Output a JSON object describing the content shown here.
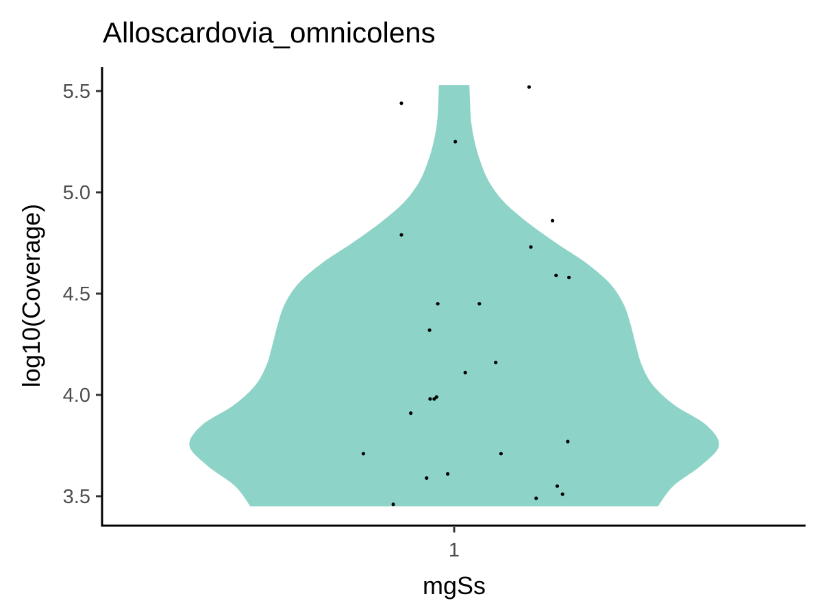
{
  "chart_data": {
    "type": "violin",
    "title": "Alloscardovia_omnicolens",
    "xlabel": "mgSs",
    "ylabel": "log10(Coverage)",
    "categories": [
      "1"
    ],
    "x_range": [
      0.4,
      1.6
    ],
    "ylim": [
      3.42,
      5.55
    ],
    "yticks": [
      3.5,
      4.0,
      4.5,
      5.0,
      5.5
    ],
    "ytick_labels": [
      "3.5",
      "4.0",
      "4.5",
      "5.0",
      "5.5"
    ],
    "grid": false,
    "legend": "none",
    "fill_color": "#8ED3C7",
    "point_color": "#000000",
    "violin": {
      "category": "1",
      "min": 3.45,
      "max": 5.53,
      "density_profile": [
        [
          3.45,
          0.348
        ],
        [
          3.55,
          0.374
        ],
        [
          3.65,
          0.421
        ],
        [
          3.75,
          0.452
        ],
        [
          3.85,
          0.431
        ],
        [
          3.95,
          0.376
        ],
        [
          4.05,
          0.339
        ],
        [
          4.15,
          0.32
        ],
        [
          4.25,
          0.31
        ],
        [
          4.35,
          0.301
        ],
        [
          4.45,
          0.289
        ],
        [
          4.55,
          0.266
        ],
        [
          4.65,
          0.226
        ],
        [
          4.75,
          0.174
        ],
        [
          4.85,
          0.126
        ],
        [
          4.95,
          0.086
        ],
        [
          5.05,
          0.06
        ],
        [
          5.15,
          0.045
        ],
        [
          5.25,
          0.035
        ],
        [
          5.35,
          0.029
        ],
        [
          5.45,
          0.027
        ],
        [
          5.53,
          0.026
        ]
      ]
    },
    "points": [
      {
        "x": 1.128,
        "y": 5.52
      },
      {
        "x": 0.91,
        "y": 5.44
      },
      {
        "x": 1.002,
        "y": 5.25
      },
      {
        "x": 1.168,
        "y": 4.86
      },
      {
        "x": 0.91,
        "y": 4.79
      },
      {
        "x": 1.131,
        "y": 4.73
      },
      {
        "x": 1.174,
        "y": 4.59
      },
      {
        "x": 1.196,
        "y": 4.58
      },
      {
        "x": 0.972,
        "y": 4.45
      },
      {
        "x": 1.043,
        "y": 4.45
      },
      {
        "x": 0.958,
        "y": 4.32
      },
      {
        "x": 1.071,
        "y": 4.16
      },
      {
        "x": 1.019,
        "y": 4.11
      },
      {
        "x": 0.959,
        "y": 3.98
      },
      {
        "x": 0.966,
        "y": 3.98
      },
      {
        "x": 0.926,
        "y": 3.91
      },
      {
        "x": 0.97,
        "y": 3.99
      },
      {
        "x": 1.194,
        "y": 3.77
      },
      {
        "x": 0.845,
        "y": 3.71
      },
      {
        "x": 1.08,
        "y": 3.71
      },
      {
        "x": 0.989,
        "y": 3.61
      },
      {
        "x": 0.953,
        "y": 3.59
      },
      {
        "x": 1.176,
        "y": 3.55
      },
      {
        "x": 1.185,
        "y": 3.51
      },
      {
        "x": 1.14,
        "y": 3.49
      },
      {
        "x": 0.896,
        "y": 3.46
      }
    ]
  }
}
